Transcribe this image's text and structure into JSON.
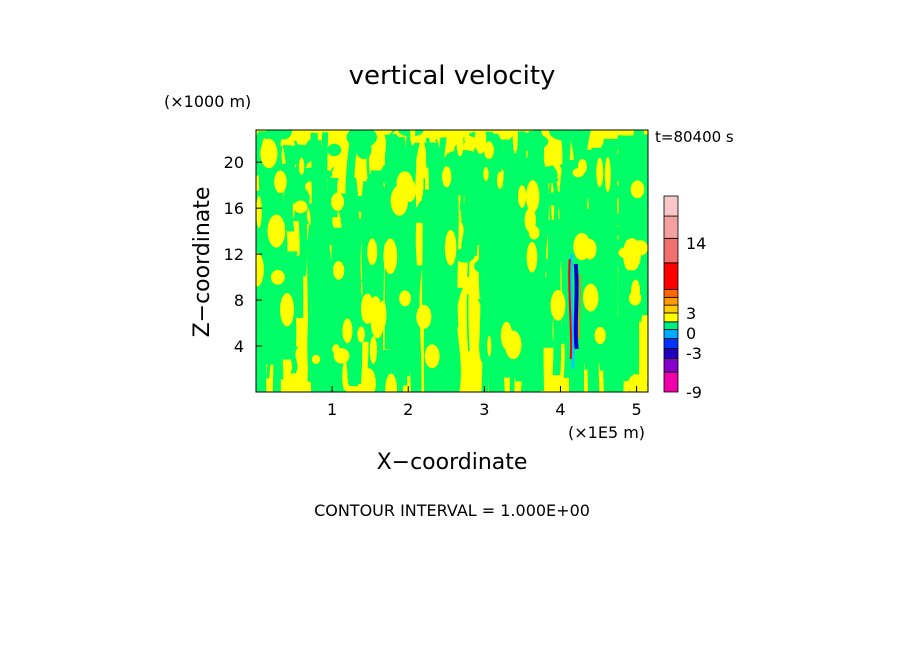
{
  "chart_data": {
    "type": "heatmap",
    "title": "vertical velocity",
    "xlabel": "X−coordinate",
    "ylabel": "Z−coordinate",
    "x_multiplier": "(×1E5 m)",
    "y_multiplier": "(×1000 m)",
    "time_label": "t=80400 s",
    "footer": "CONTOUR INTERVAL = 1.000E+00",
    "xlim": [
      0,
      5.15
    ],
    "ylim": [
      0,
      22.8
    ],
    "x_ticks": [
      1,
      2,
      3,
      4,
      5
    ],
    "x_tick_labels": [
      "1",
      "2",
      "3",
      "4",
      "5"
    ],
    "y_ticks": [
      4,
      8,
      12,
      16,
      20
    ],
    "y_tick_labels": [
      "4",
      "8",
      "12",
      "16",
      "20"
    ],
    "field_colors": {
      "positive_small": "#ffff00",
      "negative_small": "#00ff66"
    },
    "colorbar": {
      "levels": [
        {
          "color": "#ee00aa"
        },
        {
          "color": "#8800cc"
        },
        {
          "color": "#2200bb"
        },
        {
          "color": "#0033ff"
        },
        {
          "color": "#00aaff"
        },
        {
          "color": "#00ee88"
        },
        {
          "color": "#ffff00"
        },
        {
          "color": "#ffcc00"
        },
        {
          "color": "#ff9900"
        },
        {
          "color": "#ff6600"
        },
        {
          "color": "#ff0000"
        },
        {
          "color": "#ee2222"
        },
        {
          "color": "#f07070"
        },
        {
          "color": "#f5a0a0"
        },
        {
          "color": "#f8c8c8"
        }
      ],
      "tick_labels": [
        "-9",
        "-3",
        "0",
        "3",
        "14"
      ]
    },
    "feature_x": 4.2,
    "feature_ylim": [
      2,
      12
    ]
  }
}
